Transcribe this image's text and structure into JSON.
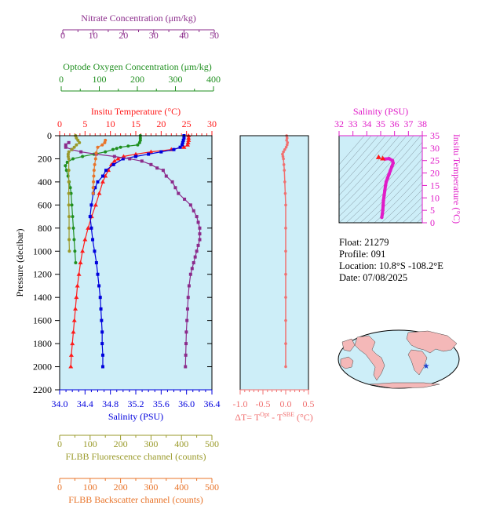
{
  "colors": {
    "nitrate": "#8b2b8b",
    "oxygen": "#1f8f1f",
    "temperature": "#ff1a1a",
    "salinity": "#0000dd",
    "fluorescence": "#9a9a2a",
    "backscatter": "#e8742a",
    "delta_t": "#f07070",
    "ts_magenta": "#e01cc8",
    "panel_bg": "#cdeef8"
  },
  "axes": {
    "nitrate": {
      "label": "Nitrate Concentration (μm/kg)",
      "ticks": [
        "0",
        "10",
        "20",
        "30",
        "40",
        "50"
      ]
    },
    "oxygen": {
      "label": "Optode Oxygen Concentration (μm/kg)",
      "ticks": [
        "0",
        "100",
        "200",
        "300",
        "400"
      ]
    },
    "temperature": {
      "label": "Insitu Temperature (°C)",
      "ticks": [
        "0",
        "5",
        "10",
        "15",
        "20",
        "25",
        "30"
      ]
    },
    "pressure": {
      "label": "Pressure (decibar)",
      "ticks": [
        "0",
        "200",
        "400",
        "600",
        "800",
        "1000",
        "1200",
        "1400",
        "1600",
        "1800",
        "2000",
        "2200"
      ]
    },
    "salinity": {
      "label": "Salinity (PSU)",
      "ticks": [
        "34.0",
        "34.4",
        "34.8",
        "35.2",
        "35.6",
        "36.0",
        "36.4"
      ]
    },
    "delta_t": {
      "label": "ΔT= T",
      "sup1": "Opt",
      "mid": " - T",
      "sup2": "SBE",
      "end": " (°C)",
      "ticks": [
        "-1.0",
        "-0.5",
        "0.0",
        "0.5"
      ]
    },
    "fluorescence": {
      "label": "FLBB Fluorescence channel (counts)",
      "ticks": [
        "0",
        "100",
        "200",
        "300",
        "400",
        "500"
      ]
    },
    "backscatter": {
      "label": "FLBB Backscatter channel (counts)",
      "ticks": [
        "0",
        "100",
        "200",
        "300",
        "400",
        "500"
      ]
    },
    "ts_salinity": {
      "label": "Salinity (PSU)",
      "ticks": [
        "32",
        "33",
        "34",
        "35",
        "36",
        "37",
        "38"
      ]
    },
    "ts_temperature": {
      "label": "Insitu Temperature (°C)",
      "ticks": [
        "0",
        "5",
        "10",
        "15",
        "20",
        "25",
        "30",
        "35"
      ]
    }
  },
  "info": {
    "float": "Float:  21279",
    "profile": "Profile:  091",
    "location": "Location:  10.8°S  -108.2°E",
    "date": "Date:  07/08/2025"
  },
  "chart_data": [
    {
      "type": "line",
      "panel": "main profile",
      "y_axis": "Pressure (decibar)",
      "ylim": [
        2200,
        0
      ],
      "series": [
        {
          "name": "Insitu Temperature (°C)",
          "axis": "temperature",
          "xlim": [
            0,
            30
          ],
          "points": [
            [
              25.4,
              0
            ],
            [
              25.4,
              20
            ],
            [
              25.4,
              40
            ],
            [
              25.3,
              60
            ],
            [
              25.2,
              80
            ],
            [
              24.5,
              100
            ],
            [
              22,
              120
            ],
            [
              18,
              140
            ],
            [
              15,
              160
            ],
            [
              12.6,
              180
            ],
            [
              11.5,
              200
            ],
            [
              10.8,
              220
            ],
            [
              10.2,
              250
            ],
            [
              9.6,
              300
            ],
            [
              9,
              350
            ],
            [
              8.5,
              400
            ],
            [
              7.8,
              500
            ],
            [
              7.1,
              600
            ],
            [
              6.3,
              700
            ],
            [
              5.6,
              800
            ],
            [
              5,
              900
            ],
            [
              4.5,
              1000
            ],
            [
              4.1,
              1100
            ],
            [
              3.8,
              1200
            ],
            [
              3.5,
              1300
            ],
            [
              3.3,
              1400
            ],
            [
              3.1,
              1500
            ],
            [
              2.9,
              1600
            ],
            [
              2.7,
              1700
            ],
            [
              2.5,
              1800
            ],
            [
              2.3,
              1900
            ],
            [
              2.2,
              2000
            ]
          ]
        },
        {
          "name": "Salinity (PSU)",
          "axis": "salinity",
          "xlim": [
            34.0,
            36.4
          ],
          "points": [
            [
              35.96,
              0
            ],
            [
              35.96,
              20
            ],
            [
              35.95,
              40
            ],
            [
              35.94,
              60
            ],
            [
              35.93,
              80
            ],
            [
              35.9,
              100
            ],
            [
              35.8,
              120
            ],
            [
              35.6,
              140
            ],
            [
              35.4,
              160
            ],
            [
              35.2,
              180
            ],
            [
              35.0,
              200
            ],
            [
              34.85,
              250
            ],
            [
              34.73,
              300
            ],
            [
              34.68,
              350
            ],
            [
              34.6,
              400
            ],
            [
              34.56,
              450
            ],
            [
              34.53,
              500
            ],
            [
              34.5,
              600
            ],
            [
              34.48,
              700
            ],
            [
              34.5,
              800
            ],
            [
              34.52,
              900
            ],
            [
              34.55,
              1000
            ],
            [
              34.58,
              1100
            ],
            [
              34.6,
              1200
            ],
            [
              34.62,
              1300
            ],
            [
              34.64,
              1400
            ],
            [
              34.65,
              1500
            ],
            [
              34.66,
              1600
            ],
            [
              34.67,
              1700
            ],
            [
              34.67,
              1800
            ],
            [
              34.68,
              1900
            ],
            [
              34.68,
              2000
            ]
          ]
        },
        {
          "name": "Optode Oxygen Concentration (μm/kg)",
          "axis": "oxygen",
          "xlim": [
            0,
            400
          ],
          "points": [
            [
              212,
              0
            ],
            [
              212,
              20
            ],
            [
              212,
              40
            ],
            [
              210,
              60
            ],
            [
              205,
              80
            ],
            [
              180,
              90
            ],
            [
              160,
              100
            ],
            [
              150,
              110
            ],
            [
              140,
              120
            ],
            [
              120,
              140
            ],
            [
              90,
              160
            ],
            [
              60,
              180
            ],
            [
              35,
              200
            ],
            [
              20,
              230
            ],
            [
              15,
              260
            ],
            [
              18,
              300
            ],
            [
              22,
              350
            ],
            [
              25,
              400
            ],
            [
              28,
              450
            ],
            [
              30,
              500
            ],
            [
              32,
              600
            ],
            [
              34,
              700
            ],
            [
              36,
              800
            ],
            [
              38,
              900
            ],
            [
              40,
              1000
            ],
            [
              42,
              1100
            ]
          ]
        },
        {
          "name": "Nitrate Concentration (μm/kg)",
          "axis": "nitrate",
          "xlim": [
            0,
            50
          ],
          "points": [
            [
              3,
              60
            ],
            [
              2,
              80
            ],
            [
              2,
              100
            ],
            [
              4,
              120
            ],
            [
              7,
              140
            ],
            [
              12,
              160
            ],
            [
              18,
              180
            ],
            [
              23,
              200
            ],
            [
              27,
              220
            ],
            [
              30,
              250
            ],
            [
              32,
              280
            ],
            [
              34,
              300
            ],
            [
              35,
              350
            ],
            [
              37,
              400
            ],
            [
              38,
              450
            ],
            [
              39,
              500
            ],
            [
              41,
              550
            ],
            [
              43,
              600
            ],
            [
              44,
              650
            ],
            [
              45,
              700
            ],
            [
              45.5,
              750
            ],
            [
              46,
              800
            ],
            [
              46,
              850
            ],
            [
              46,
              900
            ],
            [
              45.5,
              950
            ],
            [
              45,
              1000
            ],
            [
              44.5,
              1050
            ],
            [
              44,
              1100
            ],
            [
              43.5,
              1150
            ],
            [
              43,
              1200
            ],
            [
              42.5,
              1300
            ],
            [
              42.2,
              1400
            ],
            [
              42,
              1500
            ],
            [
              41.8,
              1600
            ],
            [
              41.6,
              1700
            ],
            [
              41.5,
              1800
            ],
            [
              41.4,
              1900
            ],
            [
              41.3,
              2000
            ]
          ]
        },
        {
          "name": "FLBB Fluorescence channel (counts)",
          "axis": "fluorescence",
          "xlim": [
            0,
            500
          ],
          "points": [
            [
              52,
              0
            ],
            [
              55,
              20
            ],
            [
              60,
              40
            ],
            [
              65,
              60
            ],
            [
              55,
              80
            ],
            [
              48,
              100
            ],
            [
              40,
              120
            ],
            [
              30,
              140
            ],
            [
              28,
              160
            ],
            [
              28,
              180
            ],
            [
              30,
              200
            ],
            [
              30,
              300
            ],
            [
              30,
              400
            ],
            [
              30,
              500
            ],
            [
              30,
              600
            ],
            [
              31,
              700
            ],
            [
              31,
              800
            ],
            [
              31,
              900
            ],
            [
              32,
              1000
            ]
          ]
        },
        {
          "name": "FLBB Backscatter channel (counts)",
          "axis": "backscatter",
          "xlim": [
            0,
            500
          ],
          "points": [
            [
              150,
              40
            ],
            [
              148,
              60
            ],
            [
              140,
              80
            ],
            [
              125,
              100
            ],
            [
              120,
              150
            ],
            [
              118,
              200
            ],
            [
              115,
              250
            ],
            [
              113,
              300
            ],
            [
              112,
              350
            ],
            [
              111,
              400
            ],
            [
              110,
              450
            ],
            [
              110,
              500
            ]
          ]
        }
      ]
    },
    {
      "type": "scatter",
      "panel": "temperature difference",
      "x_label": "ΔT= TOpt - TSBE (°C)",
      "xlim": [
        -1.0,
        0.5
      ],
      "ylim": [
        2200,
        0
      ],
      "points": [
        [
          0.02,
          0
        ],
        [
          0.03,
          20
        ],
        [
          0.02,
          40
        ],
        [
          0.04,
          60
        ],
        [
          0.03,
          80
        ],
        [
          0.01,
          100
        ],
        [
          -0.02,
          120
        ],
        [
          -0.05,
          140
        ],
        [
          -0.07,
          160
        ],
        [
          -0.06,
          180
        ],
        [
          -0.05,
          200
        ],
        [
          -0.04,
          250
        ],
        [
          -0.03,
          300
        ],
        [
          -0.02,
          400
        ],
        [
          -0.01,
          500
        ],
        [
          0,
          600
        ],
        [
          0,
          800
        ],
        [
          0,
          1000
        ],
        [
          0,
          1200
        ],
        [
          0,
          1400
        ],
        [
          0,
          1600
        ],
        [
          0,
          1800
        ],
        [
          0,
          2000
        ]
      ]
    },
    {
      "type": "scatter",
      "panel": "T-S diagram",
      "xlabel": "Salinity (PSU)",
      "ylabel": "Insitu Temperature (°C)",
      "xlim": [
        32,
        38
      ],
      "ylim": [
        0,
        35
      ],
      "points": [
        [
          35.08,
          2.2
        ],
        [
          35.12,
          3.5
        ],
        [
          35.15,
          5
        ],
        [
          35.18,
          7
        ],
        [
          35.2,
          9
        ],
        [
          35.25,
          11
        ],
        [
          35.3,
          13
        ],
        [
          35.35,
          15
        ],
        [
          35.4,
          16.5
        ],
        [
          35.5,
          18
        ],
        [
          35.6,
          19.5
        ],
        [
          35.7,
          21
        ],
        [
          35.8,
          22.5
        ],
        [
          35.9,
          24
        ],
        [
          35.85,
          25
        ],
        [
          35.6,
          25.8
        ],
        [
          35.3,
          25.6
        ]
      ],
      "extra_markers": [
        [
          34.85,
          26.2
        ],
        [
          35.15,
          25.7
        ]
      ]
    }
  ]
}
